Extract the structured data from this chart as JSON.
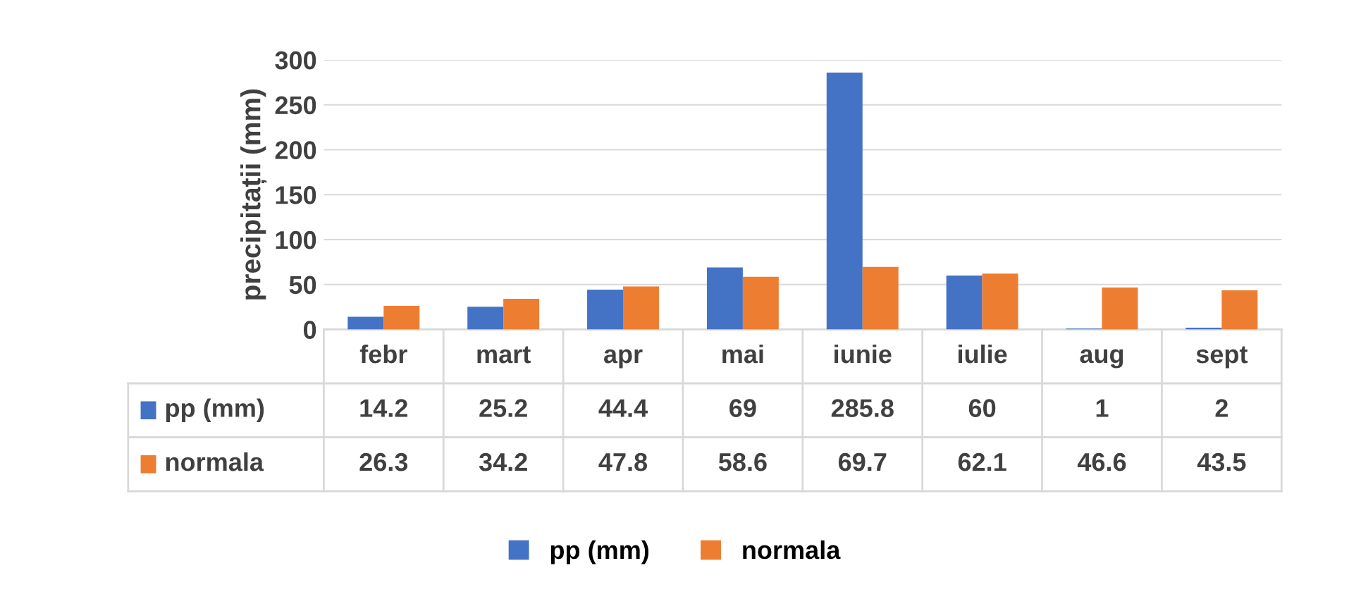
{
  "chart_data": {
    "type": "bar",
    "ylabel": "precipitații (mm)",
    "categories": [
      "febr",
      "mart",
      "apr",
      "mai",
      "iunie",
      "iulie",
      "aug",
      "sept"
    ],
    "series": [
      {
        "name": "pp (mm)",
        "color": "#4472c4",
        "values": [
          14.2,
          25.2,
          44.4,
          69,
          285.8,
          60,
          1,
          2
        ]
      },
      {
        "name": "normala",
        "color": "#ed7d31",
        "values": [
          26.3,
          34.2,
          47.8,
          58.6,
          69.7,
          62.1,
          46.6,
          43.5
        ]
      }
    ],
    "ylim": [
      0,
      300
    ],
    "yticks": [
      0,
      50,
      100,
      150,
      200,
      250,
      300
    ],
    "grid": "y",
    "legend": "bottom",
    "data_labels": true
  }
}
